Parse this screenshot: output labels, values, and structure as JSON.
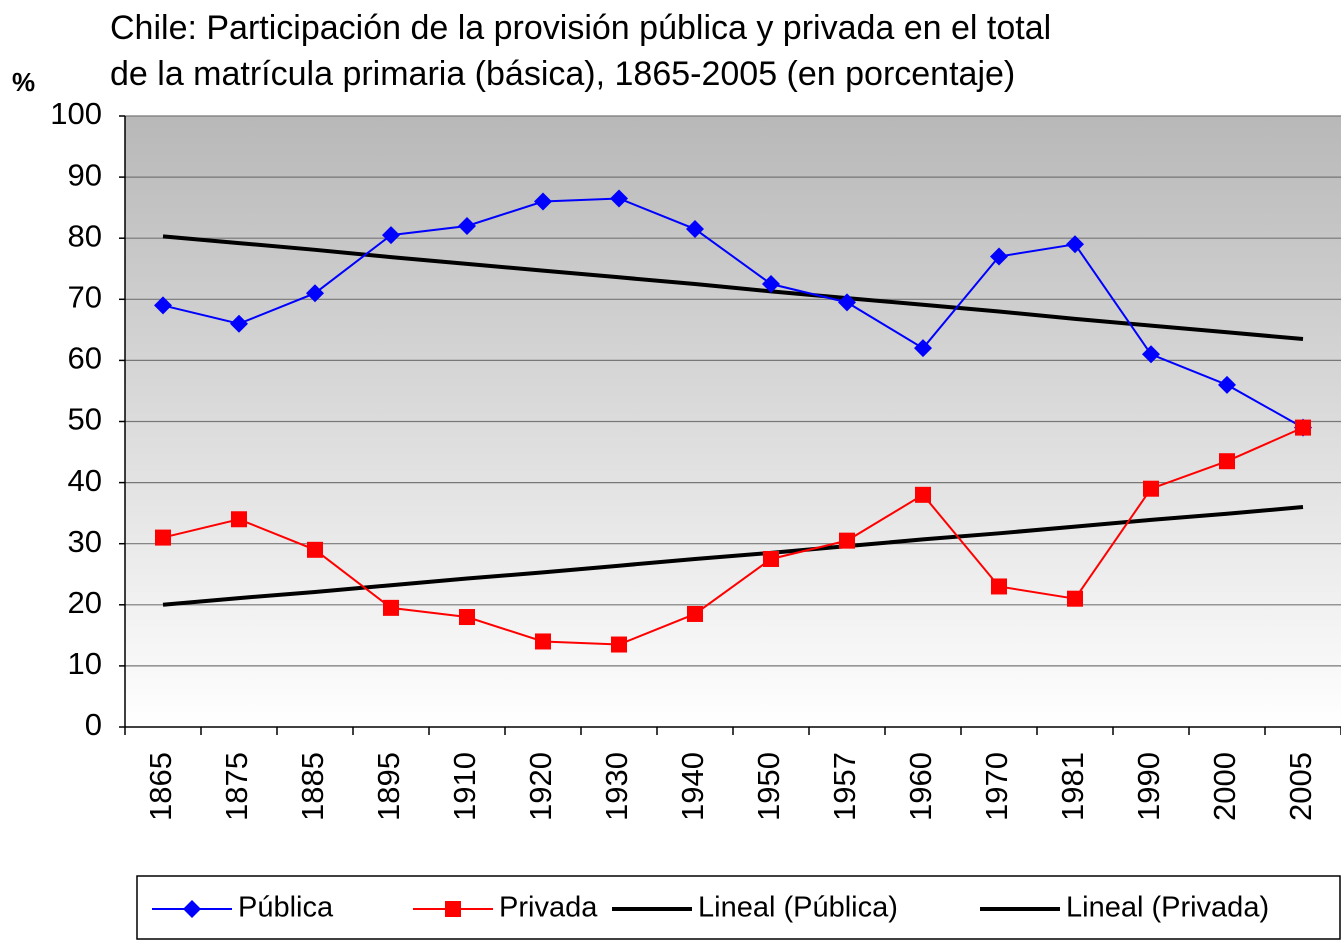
{
  "chart_data": {
    "type": "line",
    "title": [
      "Chile: Participación de la provisión pública y privada en el total",
      "de la matrícula primaria (básica), 1865-2005 (en porcentaje)"
    ],
    "ylabel": "%",
    "categories": [
      "1865",
      "1875",
      "1885",
      "1895",
      "1910",
      "1920",
      "1930",
      "1940",
      "1950",
      "1957",
      "1960",
      "1970",
      "1981",
      "1990",
      "2000",
      "2005"
    ],
    "series": [
      {
        "name": "Pública",
        "color": "#0000ff",
        "marker": "diamond",
        "values": [
          69,
          66,
          71,
          80.5,
          82,
          86,
          86.5,
          81.5,
          72.5,
          69.5,
          62,
          77,
          79,
          61,
          56,
          49
        ]
      },
      {
        "name": "Privada",
        "color": "#ff0000",
        "marker": "square",
        "values": [
          31,
          34,
          29,
          19.5,
          18,
          14,
          13.5,
          18.5,
          27.5,
          30.5,
          38,
          23,
          21,
          39,
          43.5,
          49
        ]
      },
      {
        "name": "Lineal (Pública)",
        "color": "#000000",
        "values": [
          80.3,
          79.2,
          78.1,
          76.9,
          75.8,
          74.7,
          73.6,
          72.5,
          71.3,
          70.2,
          69.1,
          68,
          66.8,
          65.7,
          64.6,
          63.5
        ]
      },
      {
        "name": "Lineal (Privada)",
        "color": "#000000",
        "values": [
          20,
          21.1,
          22.1,
          23.2,
          24.3,
          25.3,
          26.4,
          27.5,
          28.5,
          29.6,
          30.7,
          31.7,
          32.8,
          33.9,
          34.9,
          36
        ]
      }
    ],
    "ylim": [
      0,
      100
    ],
    "yticks": [
      0,
      10,
      20,
      30,
      40,
      50,
      60,
      70,
      80,
      90,
      100
    ],
    "grid": true,
    "legend": "bottom"
  }
}
